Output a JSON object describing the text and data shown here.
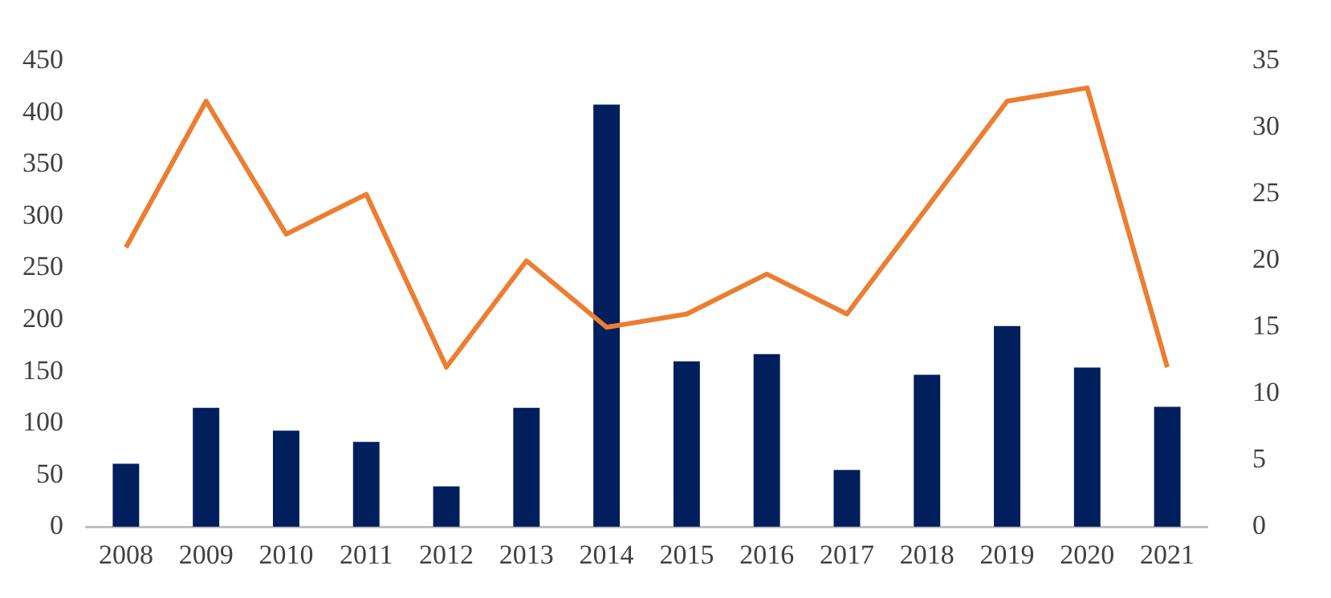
{
  "chart_data": {
    "type": "bar",
    "categories": [
      "2008",
      "2009",
      "2010",
      "2011",
      "2012",
      "2013",
      "2014",
      "2015",
      "2016",
      "2017",
      "2018",
      "2019",
      "2020",
      "2021"
    ],
    "series": [
      {
        "color": "#001f5c",
        "values": [
          61,
          115,
          93,
          82,
          39,
          115,
          408,
          160,
          167,
          55,
          147,
          194,
          154,
          116
        ]
      },
      {
        "type": "line",
        "axis": "y2",
        "color": "#ed7d31",
        "values": [
          21,
          32,
          22,
          25,
          12,
          20,
          15,
          16,
          19,
          16,
          24,
          32,
          33,
          12
        ]
      }
    ],
    "ylim": [
      0,
      450
    ],
    "yticks": [
      0,
      50,
      100,
      150,
      200,
      250,
      300,
      350,
      400,
      450
    ],
    "y2lim": [
      0,
      35
    ],
    "y2ticks": [
      0,
      5,
      10,
      15,
      20,
      25,
      30,
      35
    ],
    "grid": false,
    "legend": false,
    "marker": "none",
    "line_style": "solid"
  }
}
